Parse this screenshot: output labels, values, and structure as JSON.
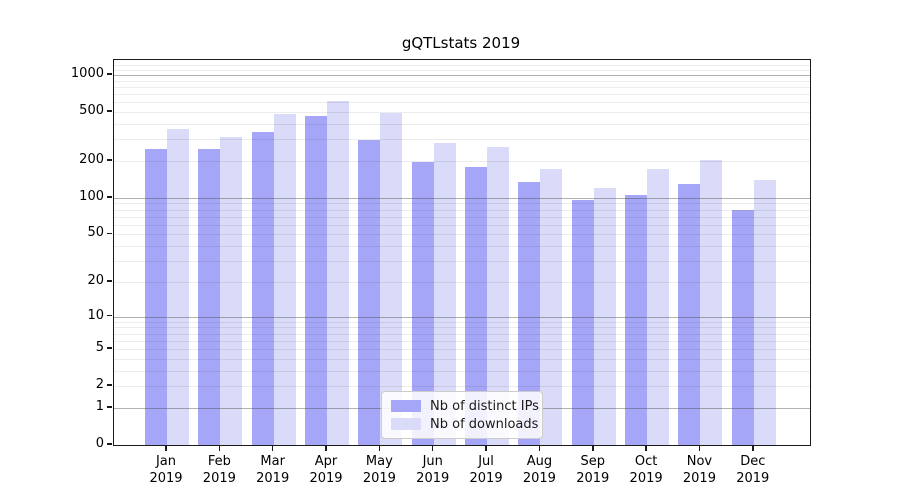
{
  "title": "gQTLstats 2019",
  "legend": {
    "items": [
      {
        "label": "Nb of distinct IPs",
        "color": "#a6a6f8"
      },
      {
        "label": "Nb of downloads",
        "color": "#dadaf9"
      }
    ]
  },
  "y_axis": {
    "tick_values": [
      0,
      1,
      2,
      5,
      10,
      20,
      50,
      100,
      200,
      500,
      1000
    ]
  },
  "x_axis": {
    "months": [
      "Jan",
      "Feb",
      "Mar",
      "Apr",
      "May",
      "Jun",
      "Jul",
      "Aug",
      "Sep",
      "Oct",
      "Nov",
      "Dec"
    ],
    "year": "2019"
  },
  "colors": {
    "bar_ips": "#a6a6f8",
    "bar_downloads": "#dadaf9",
    "spine": "#1a1a1a",
    "background": "#ffffff"
  },
  "chart_data": {
    "type": "bar",
    "title": "gQTLstats 2019",
    "categories": [
      "Jan 2019",
      "Feb 2019",
      "Mar 2019",
      "Apr 2019",
      "May 2019",
      "Jun 2019",
      "Jul 2019",
      "Aug 2019",
      "Sep 2019",
      "Oct 2019",
      "Nov 2019",
      "Dec 2019"
    ],
    "series": [
      {
        "name": "Nb of distinct IPs",
        "color": "#a6a6f8",
        "values": [
          250,
          250,
          344,
          468,
          299,
          197,
          180,
          134,
          96,
          106,
          131,
          80
        ]
      },
      {
        "name": "Nb of downloads",
        "color": "#dadaf9",
        "values": [
          363,
          315,
          483,
          616,
          490,
          280,
          259,
          172,
          120,
          171,
          203,
          139
        ]
      }
    ],
    "xlabel": "",
    "ylabel": "",
    "y_scale": "log1p",
    "y_ticks": [
      0,
      1,
      2,
      5,
      10,
      20,
      50,
      100,
      200,
      500,
      1000
    ],
    "ylim": [
      0,
      1312
    ],
    "grid": "horizontal; light minor gridlines at 2-9 per decade, darker major gridlines at 1, 10, 100, 1000, drawn over bars",
    "legend_position": "lower center inside plot"
  }
}
